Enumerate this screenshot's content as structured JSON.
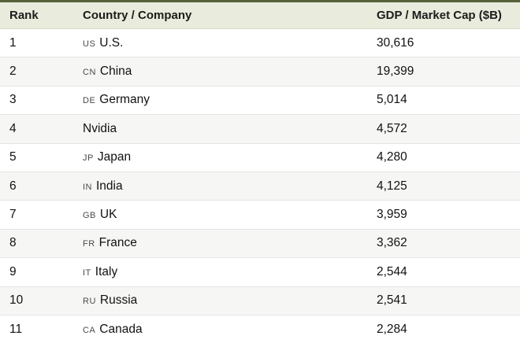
{
  "table": {
    "columns": {
      "rank": "Rank",
      "name": "Country / Company",
      "value": "GDP / Market Cap ($B)"
    },
    "rows": [
      {
        "rank": "1",
        "code": "US",
        "name": "U.S.",
        "value": "30,616"
      },
      {
        "rank": "2",
        "code": "CN",
        "name": "China",
        "value": "19,399"
      },
      {
        "rank": "3",
        "code": "DE",
        "name": "Germany",
        "value": "5,014"
      },
      {
        "rank": "4",
        "code": "",
        "name": "Nvidia",
        "value": "4,572"
      },
      {
        "rank": "5",
        "code": "JP",
        "name": "Japan",
        "value": "4,280"
      },
      {
        "rank": "6",
        "code": "IN",
        "name": "India",
        "value": "4,125"
      },
      {
        "rank": "7",
        "code": "GB",
        "name": "UK",
        "value": "3,959"
      },
      {
        "rank": "8",
        "code": "FR",
        "name": "France",
        "value": "3,362"
      },
      {
        "rank": "9",
        "code": "IT",
        "name": "Italy",
        "value": "2,544"
      },
      {
        "rank": "10",
        "code": "RU",
        "name": "Russia",
        "value": "2,541"
      },
      {
        "rank": "11",
        "code": "CA",
        "name": "Canada",
        "value": "2,284"
      }
    ]
  },
  "colors": {
    "top_border": "#55613a",
    "header_bg": "#e9ecdc",
    "row_alt_bg": "#f6f7f5",
    "row_divider": "#e4e4e4"
  }
}
